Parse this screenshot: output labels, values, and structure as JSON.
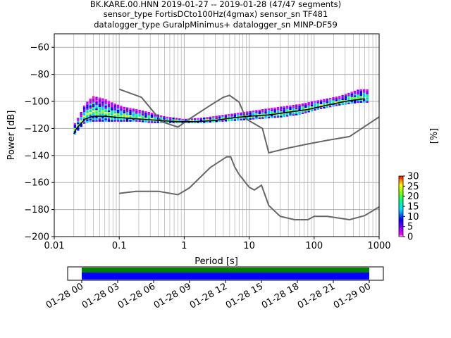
{
  "title_lines": [
    "BK.KARE.00.HNN   2019-01-27 -- 2019-01-28  (47/47 segments)",
    "sensor_type FortisDCto100Hz(4gmax) sensor_sn TF481",
    "datalogger_type GuralpMinimus+ datalogger_sn MINP-DF59"
  ],
  "colors": {
    "mean_line": "#000000",
    "noise_model": "#666666",
    "grid": "#b0b0b0",
    "coverage_top": "#008000",
    "coverage_bottom": "#0000ff"
  },
  "chart_data": {
    "type": "heatmap",
    "title": "BK.KARE.00.HNN   2019-01-27 -- 2019-01-28  (47/47 segments)",
    "xlabel": "Period [s]",
    "ylabel": "Power [dB]",
    "xscale": "log",
    "xlim": [
      0.01,
      1000
    ],
    "ylim": [
      -200,
      -50
    ],
    "x_ticks": [
      {
        "value": 0.01,
        "label": "0.01"
      },
      {
        "value": 0.1,
        "label": "0.1"
      },
      {
        "value": 1,
        "label": "1"
      },
      {
        "value": 10,
        "label": "10"
      },
      {
        "value": 100,
        "label": "100"
      },
      {
        "value": 1000,
        "label": "1000"
      }
    ],
    "y_ticks": [
      {
        "value": -60,
        "label": "−60"
      },
      {
        "value": -80,
        "label": "−80"
      },
      {
        "value": -100,
        "label": "−100"
      },
      {
        "value": -120,
        "label": "−120"
      },
      {
        "value": -140,
        "label": "−140"
      },
      {
        "value": -160,
        "label": "−160"
      },
      {
        "value": -180,
        "label": "−180"
      },
      {
        "value": -200,
        "label": "−200"
      }
    ],
    "grid": true,
    "colorbar": {
      "label": "[%]",
      "range": [
        0,
        30
      ],
      "ticks": [
        {
          "value": 0,
          "label": "0"
        },
        {
          "value": 5,
          "label": "5"
        },
        {
          "value": 10,
          "label": "10"
        },
        {
          "value": 15,
          "label": "15"
        },
        {
          "value": 20,
          "label": "20"
        },
        {
          "value": 25,
          "label": "25"
        },
        {
          "value": 30,
          "label": "30"
        }
      ]
    },
    "ppsd_bands": [
      {
        "period": 0.02,
        "top": -118,
        "bottom": -126
      },
      {
        "period": 0.025,
        "top": -110,
        "bottom": -120
      },
      {
        "period": 0.03,
        "top": -102,
        "bottom": -116
      },
      {
        "period": 0.04,
        "top": -96,
        "bottom": -115
      },
      {
        "period": 0.06,
        "top": -98,
        "bottom": -115
      },
      {
        "period": 0.08,
        "top": -101,
        "bottom": -115
      },
      {
        "period": 0.12,
        "top": -104,
        "bottom": -115
      },
      {
        "period": 0.2,
        "top": -106,
        "bottom": -115
      },
      {
        "period": 0.3,
        "top": -108,
        "bottom": -116
      },
      {
        "period": 0.5,
        "top": -111,
        "bottom": -116
      },
      {
        "period": 1,
        "top": -113,
        "bottom": -116
      },
      {
        "period": 2,
        "top": -112,
        "bottom": -116
      },
      {
        "period": 4,
        "top": -110,
        "bottom": -115
      },
      {
        "period": 8,
        "top": -108,
        "bottom": -114
      },
      {
        "period": 15,
        "top": -106,
        "bottom": -113
      },
      {
        "period": 30,
        "top": -104,
        "bottom": -112
      },
      {
        "period": 60,
        "top": -102,
        "bottom": -110
      },
      {
        "period": 120,
        "top": -99,
        "bottom": -106
      },
      {
        "period": 250,
        "top": -96,
        "bottom": -103
      },
      {
        "period": 500,
        "top": -91,
        "bottom": -101
      },
      {
        "period": 700,
        "top": -91,
        "bottom": -101
      }
    ],
    "mean_curve": {
      "x": [
        0.02,
        0.022,
        0.025,
        0.03,
        0.04,
        0.06,
        0.1,
        0.2,
        0.4,
        0.8,
        1.5,
        3,
        6,
        10,
        20,
        40,
        80,
        150,
        300,
        600
      ],
      "y": [
        -124,
        -120,
        -117,
        -113,
        -111,
        -111,
        -112,
        -113,
        -114,
        -115,
        -115,
        -114,
        -112,
        -111,
        -110,
        -108,
        -106,
        -103,
        -100,
        -98
      ]
    },
    "noise_models": [
      {
        "x": [
          0.1,
          0.22,
          0.45,
          0.8,
          1.2,
          2.5,
          4,
          5,
          7,
          9,
          16,
          20,
          40,
          80,
          150,
          350,
          1000
        ],
        "y": [
          -91,
          -97,
          -115,
          -119,
          -113,
          -103,
          -97,
          -95.5,
          -100.5,
          -113,
          -120,
          -138,
          -134.5,
          -131.5,
          -129,
          -126,
          -111.5
        ]
      },
      {
        "x": [
          0.1,
          0.18,
          0.4,
          0.8,
          1.2,
          2.5,
          4.5,
          5.2,
          6,
          7,
          10,
          12,
          15.5,
          20,
          30,
          50,
          80,
          100,
          160,
          350,
          600,
          1000
        ],
        "y": [
          -168,
          -166.5,
          -166.5,
          -169,
          -164,
          -149,
          -141,
          -141,
          -148.5,
          -154,
          -163.5,
          -165.5,
          -162,
          -177,
          -185,
          -187.5,
          -187.5,
          -185,
          -185,
          -187.5,
          -184.5,
          -178
        ]
      }
    ],
    "coverage": {
      "xlabels": [
        "01-28 00",
        "01-28 03",
        "01-28 06",
        "01-28 09",
        "01-28 12",
        "01-28 15",
        "01-28 18",
        "01-28 21",
        "01-29 00"
      ],
      "rows": [
        "top",
        "bottom"
      ]
    }
  }
}
